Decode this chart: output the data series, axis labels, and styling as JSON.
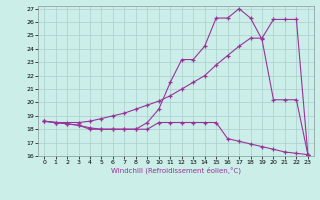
{
  "xlabel": "Windchill (Refroidissement éolien,°C)",
  "bg_color": "#cceee8",
  "grid_color": "#aacccc",
  "line_color": "#993399",
  "xlim": [
    -0.5,
    23.5
  ],
  "ylim": [
    16,
    27.2
  ],
  "xticks": [
    0,
    1,
    2,
    3,
    4,
    5,
    6,
    7,
    8,
    9,
    10,
    11,
    12,
    13,
    14,
    15,
    16,
    17,
    18,
    19,
    20,
    21,
    22,
    23
  ],
  "yticks": [
    16,
    17,
    18,
    19,
    20,
    21,
    22,
    23,
    24,
    25,
    26,
    27
  ],
  "series1_x": [
    0,
    1,
    2,
    3,
    4,
    5,
    6,
    7,
    8,
    9,
    10,
    11,
    12,
    13,
    14,
    15,
    16,
    17,
    18,
    19,
    20,
    21,
    22,
    23
  ],
  "series1_y": [
    18.6,
    18.5,
    18.4,
    18.3,
    18.0,
    18.0,
    18.0,
    18.0,
    18.0,
    18.0,
    18.5,
    18.5,
    18.5,
    18.5,
    18.5,
    18.5,
    17.3,
    17.1,
    16.9,
    16.7,
    16.5,
    16.3,
    16.2,
    16.1
  ],
  "series2_x": [
    0,
    1,
    2,
    3,
    4,
    5,
    6,
    7,
    8,
    9,
    10,
    11,
    12,
    13,
    14,
    15,
    16,
    17,
    18,
    19,
    20,
    21,
    22,
    23
  ],
  "series2_y": [
    18.6,
    18.5,
    18.4,
    18.3,
    18.1,
    18.0,
    18.0,
    18.0,
    18.0,
    18.5,
    19.5,
    21.5,
    23.2,
    23.2,
    24.2,
    26.3,
    26.3,
    27.0,
    26.3,
    24.7,
    20.2,
    20.2,
    20.2,
    16.1
  ],
  "series3_x": [
    0,
    1,
    2,
    3,
    4,
    5,
    6,
    7,
    8,
    9,
    10,
    11,
    12,
    13,
    14,
    15,
    16,
    17,
    18,
    19,
    20,
    21,
    22,
    23
  ],
  "series3_y": [
    18.6,
    18.5,
    18.5,
    18.5,
    18.6,
    18.8,
    19.0,
    19.2,
    19.5,
    19.8,
    20.1,
    20.5,
    21.0,
    21.5,
    22.0,
    22.8,
    23.5,
    24.2,
    24.8,
    24.8,
    26.2,
    26.2,
    26.2,
    16.1
  ]
}
